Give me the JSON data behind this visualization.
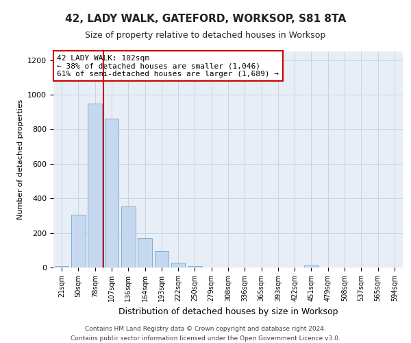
{
  "title": "42, LADY WALK, GATEFORD, WORKSOP, S81 8TA",
  "subtitle": "Size of property relative to detached houses in Worksop",
  "xlabel": "Distribution of detached houses by size in Worksop",
  "ylabel": "Number of detached properties",
  "footer_line1": "Contains HM Land Registry data © Crown copyright and database right 2024.",
  "footer_line2": "Contains public sector information licensed under the Open Government Licence v3.0.",
  "bar_labels": [
    "21sqm",
    "50sqm",
    "78sqm",
    "107sqm",
    "136sqm",
    "164sqm",
    "193sqm",
    "222sqm",
    "250sqm",
    "279sqm",
    "308sqm",
    "336sqm",
    "365sqm",
    "393sqm",
    "422sqm",
    "451sqm",
    "479sqm",
    "508sqm",
    "537sqm",
    "565sqm",
    "594sqm"
  ],
  "bar_values": [
    8,
    305,
    950,
    860,
    355,
    170,
    95,
    28,
    8,
    0,
    0,
    0,
    0,
    0,
    0,
    12,
    0,
    0,
    0,
    0,
    0
  ],
  "bar_color": "#c5d8f0",
  "bar_edge_color": "#7ab0d4",
  "annotation_line1": "42 LADY WALK: 102sqm",
  "annotation_line2": "← 38% of detached houses are smaller (1,046)",
  "annotation_line3": "61% of semi-detached houses are larger (1,689) →",
  "vline_color": "#cc0000",
  "annotation_box_color": "#cc0000",
  "ylim": [
    0,
    1250
  ],
  "yticks": [
    0,
    200,
    400,
    600,
    800,
    1000,
    1200
  ],
  "grid_color": "#c8d4e0",
  "bg_color": "#e8eef5",
  "title_fontsize": 11,
  "subtitle_fontsize": 9,
  "annotation_fontsize": 8,
  "tick_fontsize": 7,
  "xlabel_fontsize": 9,
  "ylabel_fontsize": 8,
  "footer_fontsize": 6.5
}
